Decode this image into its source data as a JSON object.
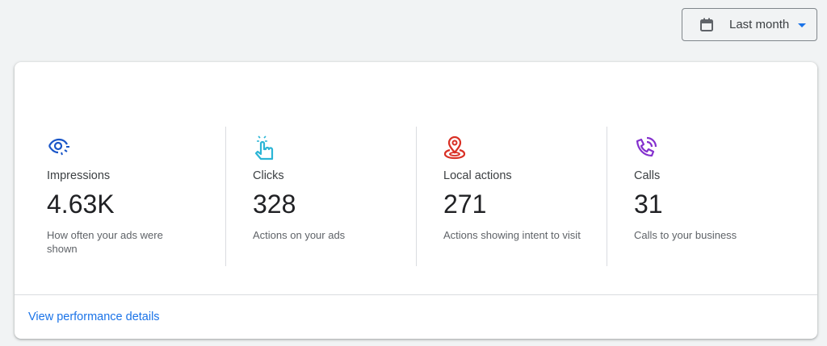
{
  "date_filter": {
    "label": "Last month",
    "icon": "calendar-icon"
  },
  "metrics": [
    {
      "label": "Impressions",
      "value": "4.63K",
      "description": "How often your ads were shown",
      "icon": "eye-icon",
      "color": "#1a56c8"
    },
    {
      "label": "Clicks",
      "value": "328",
      "description": "Actions on your ads",
      "icon": "tap-icon",
      "color": "#2bb5d6"
    },
    {
      "label": "Local actions",
      "value": "271",
      "description": "Actions showing intent to visit",
      "icon": "location-pin-icon",
      "color": "#d93025"
    },
    {
      "label": "Calls",
      "value": "31",
      "description": "Calls to your business",
      "icon": "phone-call-icon",
      "color": "#8430ce"
    }
  ],
  "footer": {
    "link": "View performance details"
  }
}
